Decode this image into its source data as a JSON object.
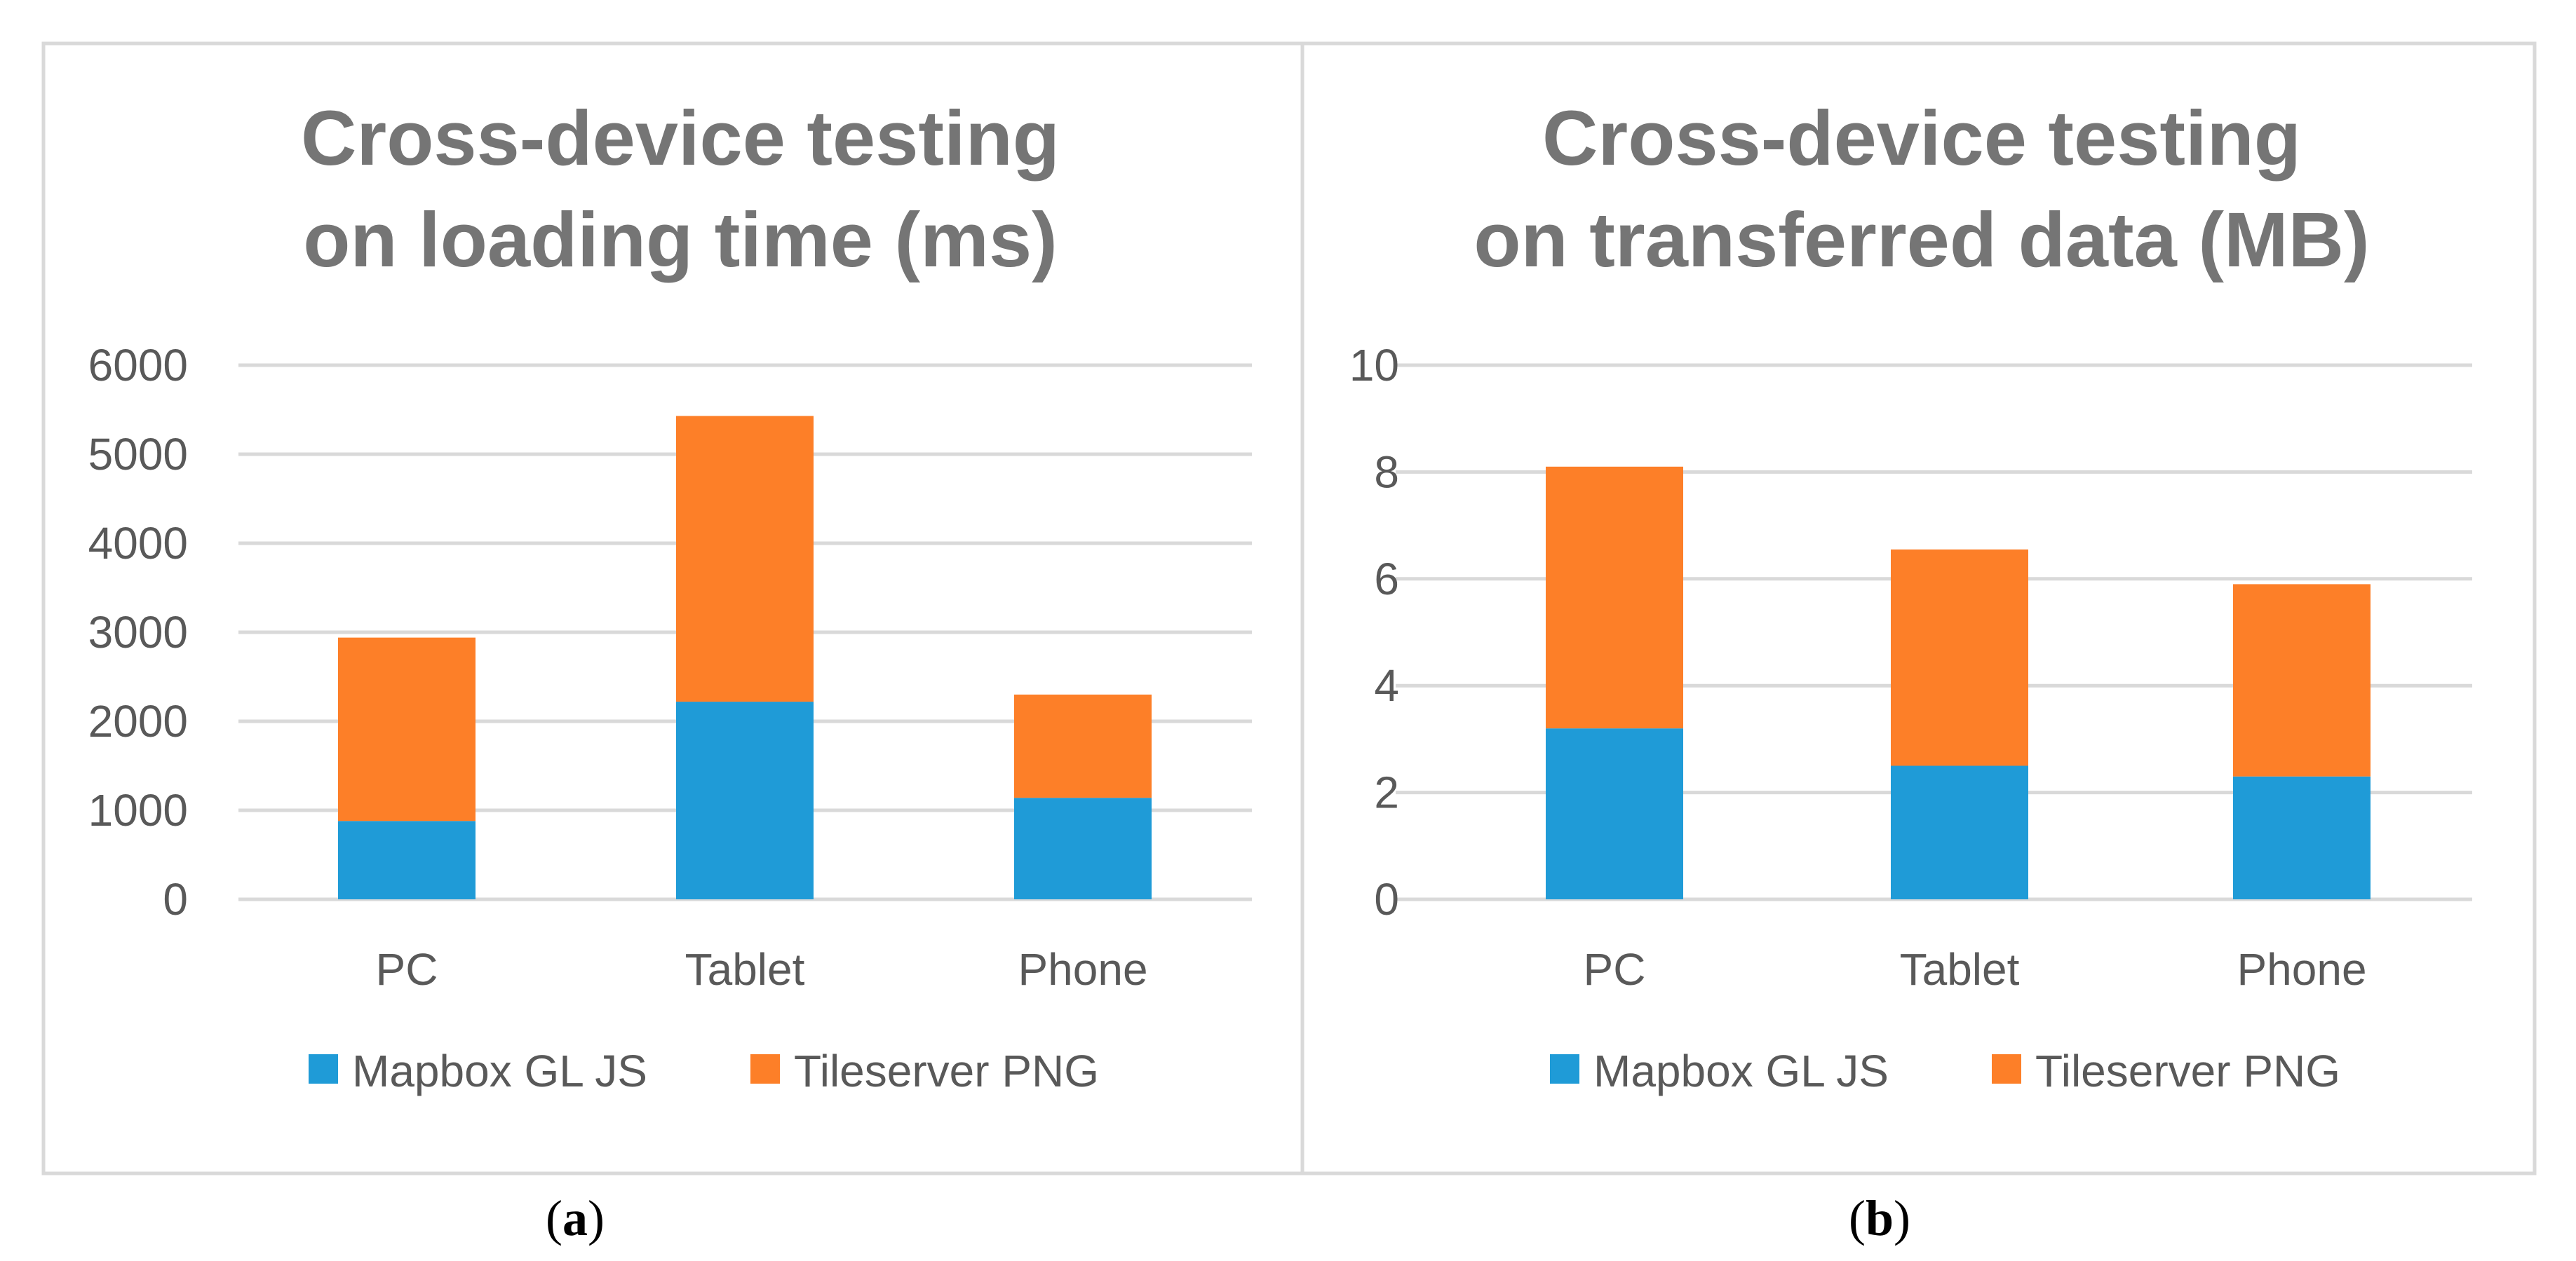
{
  "colors": {
    "series_1": "#1f9bd7",
    "series_2": "#fd7f28",
    "grid": "#d9d9d9",
    "frame": "#d9d9d9",
    "title": "#757575",
    "text": "#595959"
  },
  "chart_data": [
    {
      "type": "bar",
      "stacked": true,
      "title": [
        "Cross-device testing",
        "on loading time (ms)"
      ],
      "categories": [
        "PC",
        "Tablet",
        "Phone"
      ],
      "series": [
        {
          "name": "Mapbox GL JS",
          "values": [
            880,
            2220,
            1140
          ]
        },
        {
          "name": "Tileserver PNG",
          "values": [
            2060,
            3210,
            1160
          ]
        }
      ],
      "ylim": [
        0,
        6000
      ],
      "yticks": [
        0,
        1000,
        2000,
        3000,
        4000,
        5000,
        6000
      ],
      "grid": true,
      "legend": "bottom",
      "caption_letter": "a",
      "caption_open": "(",
      "caption_close": ")"
    },
    {
      "type": "bar",
      "stacked": true,
      "title": [
        "Cross-device testing",
        "on transferred data (MB)"
      ],
      "categories": [
        "PC",
        "Tablet",
        "Phone"
      ],
      "series": [
        {
          "name": "Mapbox GL JS",
          "values": [
            3.2,
            2.5,
            2.3
          ]
        },
        {
          "name": "Tileserver PNG",
          "values": [
            4.9,
            4.05,
            3.6
          ]
        }
      ],
      "ylim": [
        0,
        10
      ],
      "yticks": [
        0,
        2,
        4,
        6,
        8,
        10
      ],
      "grid": true,
      "legend": "bottom",
      "caption_letter": "b",
      "caption_open": "(",
      "caption_close": ")"
    }
  ]
}
